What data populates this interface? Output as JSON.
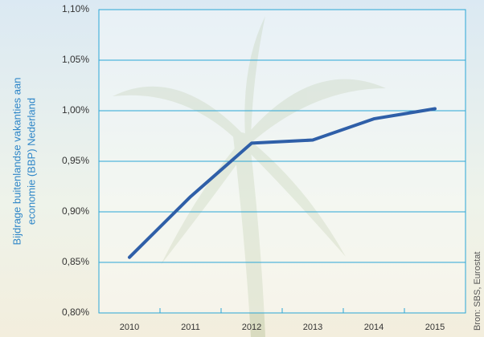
{
  "chart_data": {
    "type": "line",
    "ylabel": [
      "Bijdrage buitenlandse vakanties aan",
      "economie (BBP) Nederland"
    ],
    "source": "Bron: SBS, Eurostat",
    "categories": [
      "2010",
      "2011",
      "2012",
      "2013",
      "2014",
      "2015"
    ],
    "series": [
      {
        "color": "#2f5fa8",
        "values": [
          0.855,
          0.915,
          0.968,
          0.971,
          0.992,
          1.002
        ]
      }
    ],
    "ylim": [
      0.8,
      1.1
    ],
    "yticks": [
      {
        "value": 0.8,
        "label": "0,80%"
      },
      {
        "value": 0.85,
        "label": "0,85%"
      },
      {
        "value": 0.9,
        "label": "0,90%"
      },
      {
        "value": 0.95,
        "label": "0,95%"
      },
      {
        "value": 1.0,
        "label": "1,00%"
      },
      {
        "value": 1.05,
        "label": "1,05%"
      },
      {
        "value": 1.1,
        "label": "1,10%"
      }
    ],
    "grid": true,
    "grid_color": "#2aa6d6"
  }
}
